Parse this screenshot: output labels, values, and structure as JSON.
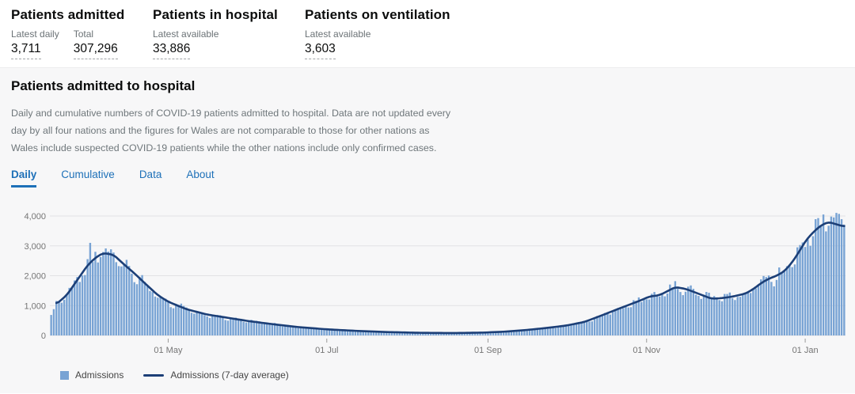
{
  "summary_stats": [
    {
      "title": "Patients admitted",
      "metrics": [
        {
          "label": "Latest daily",
          "value": "3,711"
        },
        {
          "label": "Total",
          "value": "307,296"
        }
      ]
    },
    {
      "title": "Patients in hospital",
      "metrics": [
        {
          "label": "Latest available",
          "value": "33,886"
        }
      ]
    },
    {
      "title": "Patients on ventilation",
      "metrics": [
        {
          "label": "Latest available",
          "value": "3,603"
        }
      ]
    }
  ],
  "card": {
    "title": "Patients admitted to hospital",
    "description": "Daily and cumulative numbers of COVID-19 patients admitted to hospital. Data are not updated every day by all four nations and the figures for Wales are not comparable to those for other nations as Wales include suspected COVID-19 patients while the other nations include only confirmed cases.",
    "tabs": [
      {
        "label": "Daily",
        "active": true
      },
      {
        "label": "Cumulative",
        "active": false
      },
      {
        "label": "Data",
        "active": false
      },
      {
        "label": "About",
        "active": false
      }
    ]
  },
  "colors": {
    "accent_blue": "#1d70b8",
    "bar": "#78a3d4",
    "line": "#1c3f77",
    "panel_bg": "#f7f7f8",
    "grid": "#e2e2e4",
    "axis_text": "#757575"
  },
  "chart_data": {
    "type": "bar",
    "title": "Daily hospital admissions with 7-day average",
    "ylim": [
      0,
      4000
    ],
    "grid": true,
    "legend_position": "bottom-left",
    "y_ticks": [
      "0",
      "1,000",
      "2,000",
      "3,000",
      "4,000"
    ],
    "y_tick_values": [
      0,
      1000,
      2000,
      3000,
      4000
    ],
    "x_ticks": [
      {
        "label": "01 May",
        "date": "2020-05-01"
      },
      {
        "label": "01 Jul",
        "date": "2020-07-01"
      },
      {
        "label": "01 Sep",
        "date": "2020-09-01"
      },
      {
        "label": "01 Nov",
        "date": "2020-11-01"
      },
      {
        "label": "01 Jan",
        "date": "2021-01-01"
      }
    ],
    "start_date": "2020-03-17",
    "end_date": "2021-01-16",
    "line_start_date": "2020-03-19",
    "start_weekday": 2,
    "series": [
      {
        "name": "Admissions",
        "type": "bar",
        "color": "#78a3d4"
      },
      {
        "name": "Admissions (7-day average)",
        "type": "line",
        "color": "#1c3f77"
      }
    ],
    "avg_anchors": [
      [
        "2020-03-17",
        640
      ],
      [
        "2020-03-19",
        1050
      ],
      [
        "2020-03-23",
        1350
      ],
      [
        "2020-03-27",
        1850
      ],
      [
        "2020-03-31",
        2350
      ],
      [
        "2020-04-03",
        2600
      ],
      [
        "2020-04-06",
        2760
      ],
      [
        "2020-04-10",
        2700
      ],
      [
        "2020-04-14",
        2380
      ],
      [
        "2020-04-18",
        2080
      ],
      [
        "2020-04-22",
        1750
      ],
      [
        "2020-04-27",
        1350
      ],
      [
        "2020-05-01",
        1130
      ],
      [
        "2020-05-08",
        880
      ],
      [
        "2020-05-16",
        700
      ],
      [
        "2020-05-24",
        590
      ],
      [
        "2020-06-01",
        480
      ],
      [
        "2020-06-10",
        380
      ],
      [
        "2020-06-20",
        280
      ],
      [
        "2020-07-01",
        205
      ],
      [
        "2020-07-12",
        155
      ],
      [
        "2020-07-24",
        115
      ],
      [
        "2020-08-05",
        90
      ],
      [
        "2020-08-18",
        80
      ],
      [
        "2020-08-30",
        95
      ],
      [
        "2020-09-08",
        130
      ],
      [
        "2020-09-16",
        185
      ],
      [
        "2020-09-24",
        255
      ],
      [
        "2020-10-01",
        330
      ],
      [
        "2020-10-08",
        450
      ],
      [
        "2020-10-15",
        680
      ],
      [
        "2020-10-22",
        920
      ],
      [
        "2020-10-29",
        1150
      ],
      [
        "2020-11-02",
        1300
      ],
      [
        "2020-11-06",
        1350
      ],
      [
        "2020-11-09",
        1480
      ],
      [
        "2020-11-12",
        1620
      ],
      [
        "2020-11-16",
        1560
      ],
      [
        "2020-11-20",
        1430
      ],
      [
        "2020-11-26",
        1230
      ],
      [
        "2020-11-30",
        1250
      ],
      [
        "2020-12-04",
        1300
      ],
      [
        "2020-12-09",
        1400
      ],
      [
        "2020-12-12",
        1550
      ],
      [
        "2020-12-15",
        1750
      ],
      [
        "2020-12-18",
        1900
      ],
      [
        "2020-12-21",
        2000
      ],
      [
        "2020-12-24",
        2150
      ],
      [
        "2020-12-27",
        2450
      ],
      [
        "2020-12-30",
        2850
      ],
      [
        "2021-01-01",
        3150
      ],
      [
        "2021-01-04",
        3450
      ],
      [
        "2021-01-07",
        3680
      ],
      [
        "2021-01-10",
        3800
      ],
      [
        "2021-01-13",
        3720
      ],
      [
        "2021-01-16",
        3650
      ]
    ],
    "bar_overrides": {
      "2020-04-01": 3100,
      "2021-01-08": 4050,
      "2021-01-11": 3980,
      "2021-01-16": 3711
    },
    "noise": {
      "seed": 11,
      "amplitude": 0.15,
      "weekly": [
        -0.09,
        -0.03,
        0.05,
        0.06,
        0.05,
        0.01,
        -0.07
      ]
    }
  }
}
